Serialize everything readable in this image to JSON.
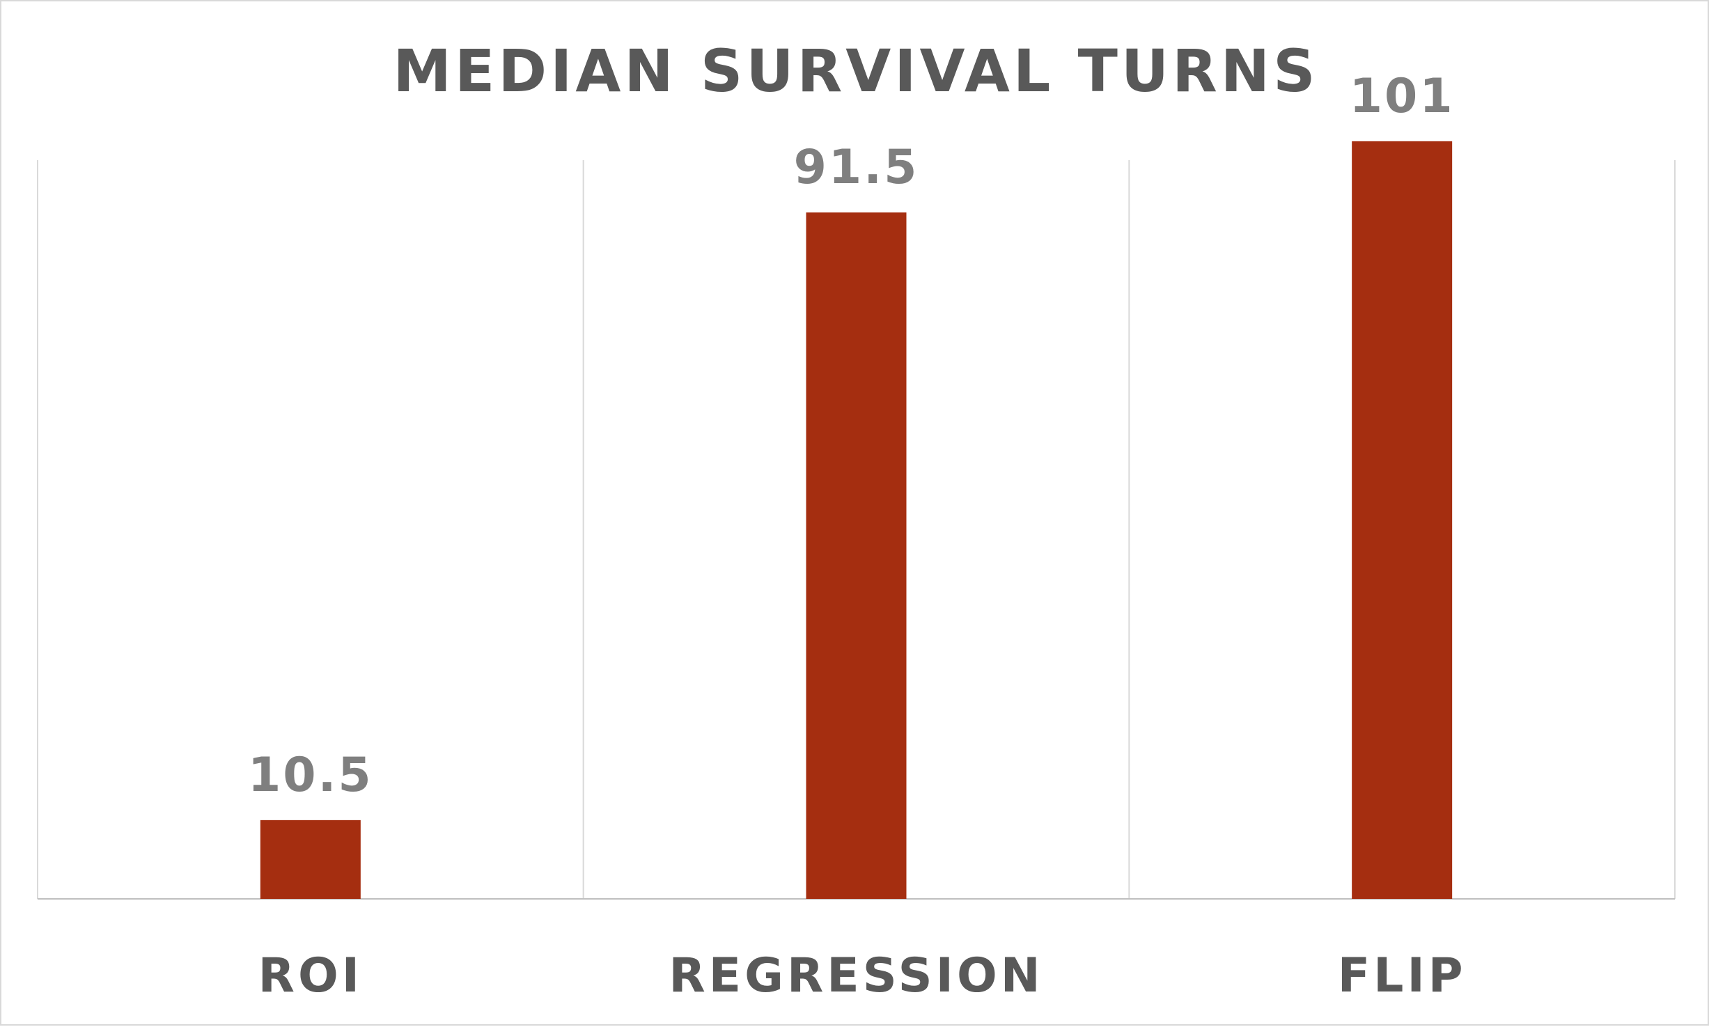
{
  "chart_data": {
    "type": "bar",
    "title": "MEDIAN SURVIVAL TURNS",
    "categories": [
      "ROI",
      "REGRESSION",
      "FLIP"
    ],
    "values": [
      10.5,
      91.5,
      101
    ],
    "data_labels": [
      "10.5",
      "91.5",
      "101"
    ],
    "xlabel": "",
    "ylabel": "",
    "ylim": [
      0,
      115
    ],
    "grid": "vertical category separators",
    "legend": "none",
    "colors": {
      "bar": "#a52e10",
      "title_text": "#595959",
      "category_text": "#595959",
      "data_label_text": "#7f7f7f",
      "gridline": "#d9d9d9",
      "axis": "#bfbfbf"
    }
  }
}
